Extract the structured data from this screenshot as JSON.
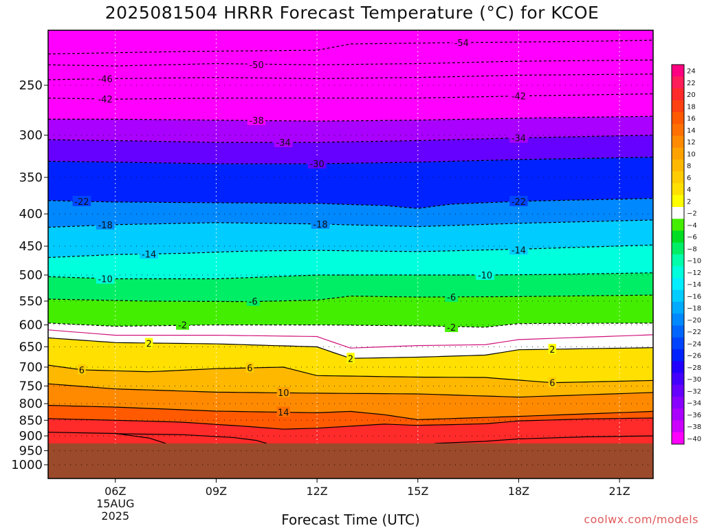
{
  "title": "2025081504 HRRR Forecast Temperature (°C) for KCOE",
  "xlabel": "Forecast Time (UTC)",
  "credit": "coolwx.com/models",
  "chart_data": {
    "type": "heatmap",
    "title": "2025081504 HRRR Forecast Temperature (°C) for KCOE",
    "xlabel": "Forecast Time (UTC)",
    "ylabel": "",
    "x_ticks": [
      {
        "hour": 6,
        "label": "06Z",
        "sub": [
          "15AUG",
          "2025"
        ]
      },
      {
        "hour": 9,
        "label": "09Z",
        "sub": []
      },
      {
        "hour": 12,
        "label": "12Z",
        "sub": []
      },
      {
        "hour": 15,
        "label": "15Z",
        "sub": []
      },
      {
        "hour": 18,
        "label": "18Z",
        "sub": []
      },
      {
        "hour": 21,
        "label": "21Z",
        "sub": []
      }
    ],
    "xlim": [
      4,
      22
    ],
    "y_scale": "log",
    "y_reversed": true,
    "ylim": [
      1000,
      200
    ],
    "y_ticks": [
      250,
      300,
      350,
      400,
      450,
      500,
      550,
      600,
      650,
      700,
      750,
      800,
      850,
      900,
      950,
      1000
    ],
    "grid": true,
    "ground_level_hpa": 925,
    "ground_color": "#9b4a2b",
    "colorbar": {
      "position": "right",
      "levels": [
        24,
        22,
        20,
        18,
        16,
        14,
        12,
        10,
        8,
        6,
        4,
        2,
        -2,
        -4,
        -6,
        -8,
        -10,
        -12,
        -14,
        -16,
        -18,
        -20,
        -22,
        -24,
        -26,
        -28,
        -30,
        -32,
        -34,
        -36,
        -38,
        -40
      ],
      "colors": [
        "#ff0080",
        "#ff1e5a",
        "#ff2a2a",
        "#ff4010",
        "#ff5a00",
        "#ff7000",
        "#ff8a00",
        "#ffa200",
        "#ffb800",
        "#ffcc00",
        "#ffe000",
        "#ffff00",
        "#ffffff",
        "#44ee00",
        "#00dd22",
        "#00ee66",
        "#00ffaa",
        "#00ffdd",
        "#00eeff",
        "#00ccff",
        "#00aaff",
        "#0088ff",
        "#0066ff",
        "#0044ff",
        "#0022ff",
        "#2200ff",
        "#4400ff",
        "#6600ff",
        "#8800ff",
        "#aa00ff",
        "#cc00ff",
        "#ff00ff"
      ]
    },
    "isotherms": [
      {
        "value": -54,
        "label": "-54",
        "points": [
          [
            4,
            223
          ],
          [
            8,
            221
          ],
          [
            12,
            220
          ],
          [
            13,
            215
          ],
          [
            16,
            214
          ],
          [
            20,
            213
          ],
          [
            22,
            212
          ]
        ]
      },
      {
        "value": -50,
        "label": "-50",
        "points": [
          [
            4,
            232
          ],
          [
            6,
            233
          ],
          [
            9,
            231
          ],
          [
            12,
            232
          ],
          [
            15,
            231
          ],
          [
            18,
            229
          ],
          [
            22,
            228
          ]
        ]
      },
      {
        "value": -46,
        "label": "-46",
        "points": [
          [
            4,
            245
          ],
          [
            6,
            244
          ],
          [
            9,
            243
          ],
          [
            12,
            244
          ],
          [
            15,
            243
          ],
          [
            18,
            241
          ],
          [
            22,
            240
          ]
        ]
      },
      {
        "value": -42,
        "label": "-42",
        "points": [
          [
            4,
            262
          ],
          [
            6,
            263
          ],
          [
            9,
            262
          ],
          [
            12,
            262
          ],
          [
            15,
            262
          ],
          [
            18,
            260
          ],
          [
            22,
            258
          ]
        ]
      },
      {
        "value": -38,
        "label": "-38",
        "points": [
          [
            4,
            283
          ],
          [
            6,
            283
          ],
          [
            9,
            284
          ],
          [
            12,
            285
          ],
          [
            15,
            284
          ],
          [
            18,
            282
          ],
          [
            22,
            280
          ]
        ]
      },
      {
        "value": -34,
        "label": "-34",
        "points": [
          [
            4,
            305
          ],
          [
            6,
            306
          ],
          [
            9,
            308
          ],
          [
            12,
            308
          ],
          [
            15,
            306
          ],
          [
            18,
            303
          ],
          [
            22,
            300
          ]
        ]
      },
      {
        "value": -30,
        "label": "-30",
        "points": [
          [
            4,
            330
          ],
          [
            6,
            331
          ],
          [
            9,
            333
          ],
          [
            12,
            333
          ],
          [
            15,
            331
          ],
          [
            18,
            328
          ],
          [
            22,
            325
          ]
        ]
      },
      {
        "value": -22,
        "label": "-22",
        "points": [
          [
            4,
            381
          ],
          [
            6,
            383
          ],
          [
            9,
            384
          ],
          [
            12,
            385
          ],
          [
            14,
            388
          ],
          [
            15,
            392
          ],
          [
            16,
            386
          ],
          [
            18,
            382
          ],
          [
            22,
            378
          ]
        ]
      },
      {
        "value": -18,
        "label": "-18",
        "points": [
          [
            4,
            420
          ],
          [
            6,
            416
          ],
          [
            9,
            413
          ],
          [
            12,
            415
          ],
          [
            15,
            419
          ],
          [
            18,
            414
          ],
          [
            22,
            409
          ]
        ]
      },
      {
        "value": -14,
        "label": "-14",
        "points": [
          [
            4,
            469
          ],
          [
            6,
            464
          ],
          [
            8,
            462
          ],
          [
            10,
            458
          ],
          [
            12,
            457
          ],
          [
            15,
            459
          ],
          [
            18,
            455
          ],
          [
            22,
            448
          ]
        ]
      },
      {
        "value": -10,
        "label": "-10",
        "points": [
          [
            4,
            503
          ],
          [
            6,
            507
          ],
          [
            9,
            507
          ],
          [
            12,
            500
          ],
          [
            15,
            500
          ],
          [
            17,
            500
          ],
          [
            19,
            499
          ],
          [
            22,
            496
          ]
        ]
      },
      {
        "value": -6,
        "label": "-6",
        "points": [
          [
            4,
            546
          ],
          [
            7,
            550
          ],
          [
            10,
            551
          ],
          [
            12,
            548
          ],
          [
            13,
            540
          ],
          [
            15,
            542
          ],
          [
            18,
            541
          ],
          [
            22,
            538
          ]
        ]
      },
      {
        "value": -2,
        "label": "-2",
        "points": [
          [
            4,
            596
          ],
          [
            6,
            603
          ],
          [
            9,
            600
          ],
          [
            12,
            600
          ],
          [
            15,
            602
          ],
          [
            17,
            605
          ],
          [
            18,
            597
          ],
          [
            22,
            596
          ]
        ]
      },
      {
        "value": 0,
        "label": "",
        "points": [
          [
            4,
            611
          ],
          [
            6,
            623
          ],
          [
            9,
            623
          ],
          [
            12,
            626
          ],
          [
            13,
            653
          ],
          [
            15,
            647
          ],
          [
            17,
            645
          ],
          [
            18,
            633
          ],
          [
            22,
            622
          ]
        ]
      },
      {
        "value": 2,
        "label": "2",
        "points": [
          [
            4,
            629
          ],
          [
            6,
            640
          ],
          [
            9,
            643
          ],
          [
            12,
            650
          ],
          [
            13,
            678
          ],
          [
            15,
            675
          ],
          [
            17,
            670
          ],
          [
            18,
            657
          ],
          [
            22,
            652
          ]
        ]
      },
      {
        "value": 6,
        "label": "6",
        "points": [
          [
            4,
            695
          ],
          [
            5,
            707
          ],
          [
            7,
            712
          ],
          [
            9,
            704
          ],
          [
            11,
            700
          ],
          [
            12,
            722
          ],
          [
            15,
            726
          ],
          [
            17,
            727
          ],
          [
            19,
            741
          ],
          [
            22,
            735
          ]
        ]
      },
      {
        "value": 10,
        "label": "10",
        "points": [
          [
            4,
            744
          ],
          [
            6,
            758
          ],
          [
            9,
            767
          ],
          [
            12,
            770
          ],
          [
            15,
            772
          ],
          [
            18,
            781
          ],
          [
            22,
            768
          ]
        ]
      },
      {
        "value": 14,
        "label": "14",
        "points": [
          [
            4,
            805
          ],
          [
            6,
            810
          ],
          [
            9,
            822
          ],
          [
            12,
            827
          ],
          [
            13,
            823
          ],
          [
            14,
            833
          ],
          [
            15,
            848
          ],
          [
            18,
            838
          ],
          [
            22,
            823
          ]
        ]
      },
      {
        "value": 18,
        "label": "",
        "points": [
          [
            4,
            845
          ],
          [
            6,
            850
          ],
          [
            8,
            856
          ],
          [
            9,
            863
          ],
          [
            10,
            870
          ],
          [
            11,
            878
          ],
          [
            12,
            875
          ],
          [
            14,
            862
          ],
          [
            15,
            866
          ],
          [
            17,
            861
          ],
          [
            18,
            852
          ],
          [
            20,
            846
          ],
          [
            22,
            843
          ]
        ]
      },
      {
        "value": 22,
        "label": "",
        "points": [
          [
            4,
            888
          ],
          [
            6,
            892
          ],
          [
            7,
            907
          ],
          [
            7.5,
            925
          ]
        ]
      },
      {
        "value": 22,
        "label": "",
        "points": [
          [
            10.5,
            925
          ],
          [
            10.2,
            915
          ],
          [
            9.5,
            905
          ],
          [
            8,
            896
          ],
          [
            6,
            893
          ]
        ]
      },
      {
        "value": 22,
        "label": "",
        "points": [
          [
            15.5,
            925
          ],
          [
            17,
            918
          ],
          [
            18,
            910
          ],
          [
            20,
            903
          ],
          [
            22,
            900
          ]
        ]
      }
    ],
    "contour_labels": [
      {
        "text": "-54",
        "hour": 16.3,
        "hpa": 214
      },
      {
        "text": "-50",
        "hour": 10.2,
        "hpa": 232
      },
      {
        "text": "-46",
        "hour": 5.7,
        "hpa": 244
      },
      {
        "text": "-42",
        "hour": 5.7,
        "hpa": 263
      },
      {
        "text": "-42",
        "hour": 18.0,
        "hpa": 260
      },
      {
        "text": "-38",
        "hour": 10.2,
        "hpa": 284
      },
      {
        "text": "-34",
        "hour": 11.0,
        "hpa": 308
      },
      {
        "text": "-34",
        "hour": 18.0,
        "hpa": 303
      },
      {
        "text": "-30",
        "hour": 12.0,
        "hpa": 333
      },
      {
        "text": "-22",
        "hour": 5.0,
        "hpa": 382
      },
      {
        "text": "-22",
        "hour": 18.0,
        "hpa": 382
      },
      {
        "text": "-18",
        "hour": 5.7,
        "hpa": 416
      },
      {
        "text": "-18",
        "hour": 12.1,
        "hpa": 415
      },
      {
        "text": "-14",
        "hour": 7.0,
        "hpa": 463
      },
      {
        "text": "-14",
        "hour": 18.0,
        "hpa": 456
      },
      {
        "text": "-10",
        "hour": 5.7,
        "hpa": 507
      },
      {
        "text": "-10",
        "hour": 17.0,
        "hpa": 500
      },
      {
        "text": "-6",
        "hour": 10.1,
        "hpa": 550
      },
      {
        "text": "-6",
        "hour": 16.0,
        "hpa": 542
      },
      {
        "text": "-2",
        "hour": 8.0,
        "hpa": 600
      },
      {
        "text": "-2",
        "hour": 16.0,
        "hpa": 605
      },
      {
        "text": "2",
        "hour": 7.0,
        "hpa": 642
      },
      {
        "text": "2",
        "hour": 13.0,
        "hpa": 678
      },
      {
        "text": "2",
        "hour": 19.0,
        "hpa": 656
      },
      {
        "text": "6",
        "hour": 5.0,
        "hpa": 707
      },
      {
        "text": "6",
        "hour": 10.0,
        "hpa": 702
      },
      {
        "text": "6",
        "hour": 19.0,
        "hpa": 741
      },
      {
        "text": "10",
        "hour": 11.0,
        "hpa": 768
      },
      {
        "text": "14",
        "hour": 11.0,
        "hpa": 825
      }
    ]
  }
}
